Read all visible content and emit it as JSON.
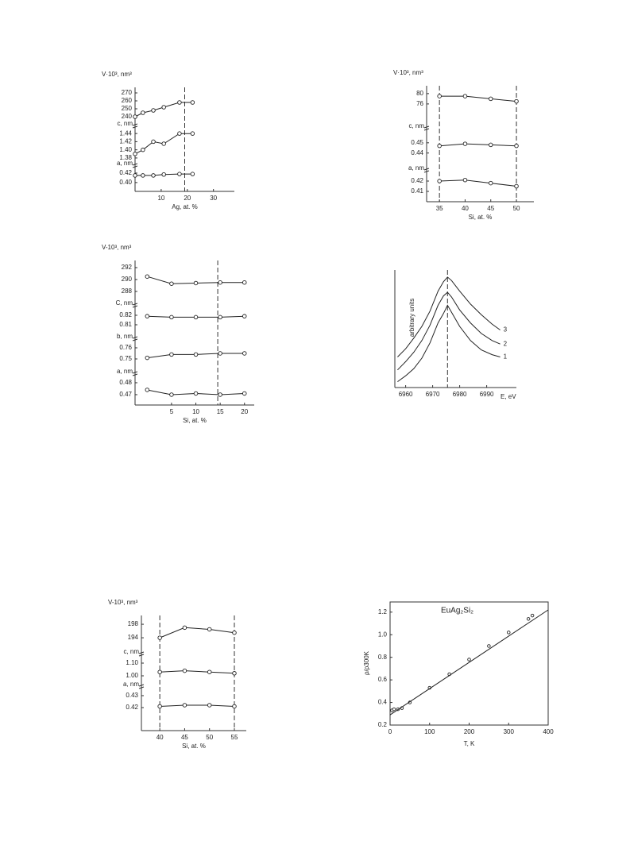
{
  "chart_data": [
    {
      "type": "line",
      "ylabel": "V·10³, nm³",
      "xlabel": "Ag, at. %",
      "xlim": [
        0,
        38
      ],
      "xticks": [
        10,
        20,
        30
      ],
      "vlines": [
        19
      ],
      "panels": [
        {
          "ylim": [
            235,
            275
          ],
          "yticks": [
            270,
            260,
            250,
            240
          ],
          "series": [
            {
              "marker": "o",
              "x": [
                0,
                3,
                7,
                11,
                17,
                22
              ],
              "values": [
                240,
                245,
                248,
                252,
                258,
                258
              ]
            }
          ]
        },
        {
          "label": "c, nm",
          "ylim": [
            1.374,
            1.452
          ],
          "yticks": [
            1.44,
            1.42,
            {
              "value": 1.4,
              "label": "1.40"
            },
            1.38
          ],
          "series": [
            {
              "marker": "o",
              "x": [
                0,
                3,
                7,
                11,
                17,
                22
              ],
              "values": [
                1.39,
                1.4,
                1.42,
                1.415,
                1.44,
                1.44
              ]
            }
          ]
        },
        {
          "label": "a, nm",
          "ylim": [
            0.383,
            0.43
          ],
          "yticks": [
            0.42,
            {
              "value": 0.4,
              "label": "0.40"
            }
          ],
          "series": [
            {
              "marker": "o",
              "x": [
                0,
                3,
                7,
                11,
                17,
                22
              ],
              "values": [
                0.415,
                0.415,
                0.415,
                0.417,
                0.418,
                0.418
              ]
            }
          ]
        }
      ]
    },
    {
      "type": "line",
      "ylabel": "V·10³, nm³",
      "xlabel": "Si, at. %",
      "xlim": [
        32.5,
        53.4
      ],
      "xticks": [
        35,
        40,
        45,
        50
      ],
      "vlines": [
        35,
        50
      ],
      "panels": [
        {
          "ylim": [
            73.2,
            81.8
          ],
          "yticks": [
            80,
            76
          ],
          "series": [
            {
              "marker": "o",
              "x": [
                35,
                40,
                45,
                50
              ],
              "values": [
                79,
                79,
                78,
                77
              ]
            }
          ]
        },
        {
          "label": "c, nm",
          "ylim": [
            0.432,
            0.4615
          ],
          "yticks": [
            0.45,
            0.44
          ],
          "series": [
            {
              "marker": "o",
              "x": [
                35,
                40,
                45,
                50
              ],
              "values": [
                0.447,
                0.449,
                0.448,
                0.447
              ]
            }
          ]
        },
        {
          "label": "a, nm",
          "ylim": [
            0.4,
            0.4277
          ],
          "yticks": [
            0.42,
            0.41
          ],
          "series": [
            {
              "marker": "o",
              "x": [
                35,
                40,
                45,
                50
              ],
              "values": [
                0.42,
                0.421,
                0.418,
                0.415
              ]
            }
          ]
        }
      ]
    },
    {
      "type": "line",
      "ylabel": "V-10³, nm³",
      "xlabel": "Si, at. %",
      "xlim": [
        -2.5,
        22
      ],
      "xticks": [
        5,
        10,
        15,
        20
      ],
      "vlines": [
        14.5
      ],
      "panels": [
        {
          "ylim": [
            287.33,
            292.93
          ],
          "yticks": [
            292,
            290,
            288
          ],
          "series": [
            {
              "marker": "o",
              "x": [
                0,
                5,
                10,
                15,
                20
              ],
              "values": [
                290.5,
                289.3,
                289.4,
                289.5,
                289.5
              ]
            }
          ]
        },
        {
          "label": "C, nm",
          "ylim": [
            0.8058,
            0.8275
          ],
          "yticks": [
            0.82,
            0.81
          ],
          "series": [
            {
              "marker": "o",
              "x": [
                0,
                5,
                10,
                15,
                20
              ],
              "values": [
                0.819,
                0.818,
                0.818,
                0.818,
                0.819
              ]
            }
          ]
        },
        {
          "label": "b, nm",
          "ylim": [
            0.7457,
            0.7657
          ],
          "yticks": [
            0.76,
            0.75
          ],
          "series": [
            {
              "marker": "o",
              "x": [
                0,
                5,
                10,
                15,
                20
              ],
              "values": [
                0.751,
                0.754,
                0.754,
                0.755,
                0.755
              ]
            }
          ]
        },
        {
          "label": "a, nm",
          "ylim": [
            0.4613,
            0.4853
          ],
          "yticks": [
            0.48,
            0.47
          ],
          "series": [
            {
              "marker": "o",
              "x": [
                0,
                5,
                10,
                15,
                20
              ],
              "values": [
                0.474,
                0.47,
                0.471,
                0.47,
                0.471
              ]
            }
          ]
        }
      ]
    },
    {
      "type": "line",
      "ylabel": "arbitrary units",
      "xlabel": "E, eV",
      "xlim": [
        6956,
        7001
      ],
      "xticks": [
        6960,
        6970,
        6980,
        6990
      ],
      "vlines": [
        6975.5
      ],
      "ylim": [
        0,
        1
      ],
      "series": [
        {
          "name": "1",
          "x": [
            6957,
            6960,
            6963,
            6966,
            6969,
            6972,
            6974,
            6975.5,
            6977,
            6980,
            6984,
            6988,
            6992,
            6995
          ],
          "values": [
            0.05,
            0.1,
            0.16,
            0.25,
            0.38,
            0.55,
            0.63,
            0.7,
            0.64,
            0.52,
            0.4,
            0.32,
            0.28,
            0.26
          ]
        },
        {
          "name": "2",
          "x": [
            6957,
            6960,
            6963,
            6966,
            6969,
            6972,
            6974,
            6975.5,
            6977,
            6980,
            6984,
            6988,
            6992,
            6995
          ],
          "values": [
            0.15,
            0.22,
            0.3,
            0.4,
            0.53,
            0.7,
            0.78,
            0.81,
            0.77,
            0.66,
            0.55,
            0.46,
            0.4,
            0.37
          ]
        },
        {
          "name": "3",
          "x": [
            6957,
            6960,
            6963,
            6966,
            6969,
            6972,
            6974,
            6975.5,
            6977,
            6980,
            6984,
            6988,
            6992,
            6995
          ],
          "values": [
            0.26,
            0.33,
            0.42,
            0.52,
            0.65,
            0.82,
            0.9,
            0.94,
            0.91,
            0.82,
            0.71,
            0.62,
            0.54,
            0.49
          ]
        }
      ]
    },
    {
      "type": "line",
      "ylabel": "V-10³, nm³",
      "xlabel": "Si, at. %",
      "xlim": [
        36.3,
        57.4
      ],
      "xticks": [
        40,
        45,
        50,
        55
      ],
      "vlines": [
        40,
        55
      ],
      "panels": [
        {
          "ylim": [
            191.9,
            199.9
          ],
          "yticks": [
            198,
            194
          ],
          "series": [
            {
              "marker": "o",
              "x": [
                40,
                45,
                50,
                55
              ],
              "values": [
                194,
                197,
                196.5,
                195.5
              ]
            }
          ]
        },
        {
          "label": "c, nm",
          "ylim": [
            0.9625,
            1.15
          ],
          "yticks": [
            {
              "value": 1.1,
              "label": "1.10"
            },
            {
              "value": 1,
              "label": "1.00"
            }
          ],
          "series": [
            {
              "marker": "o",
              "x": [
                40,
                45,
                50,
                55
              ],
              "values": [
                1.03,
                1.04,
                1.03,
                1.02
              ]
            }
          ]
        },
        {
          "label": "a, nm",
          "ylim": [
            0.4007,
            0.4353
          ],
          "yticks": [
            0.43,
            0.42
          ],
          "series": [
            {
              "marker": "o",
              "x": [
                40,
                45,
                50,
                55
              ],
              "values": [
                0.421,
                0.422,
                0.422,
                0.421
              ]
            }
          ]
        }
      ]
    },
    {
      "type": "line",
      "title": "EuAg₂Si₂",
      "ylabel": "ρ/ρ300K",
      "xlabel": "T, K",
      "xlim": [
        0,
        400
      ],
      "xticks": [
        0,
        100,
        200,
        300,
        400
      ],
      "ylim": [
        0.2,
        1.29
      ],
      "yticks": [
        0.2,
        0.4,
        0.6,
        0.8,
        {
          "value": 1,
          "label": "1.0"
        },
        1.2
      ],
      "series": [
        {
          "marker": "o",
          "line": false,
          "x": [
            5,
            10,
            20,
            30,
            50,
            100,
            150,
            200,
            250,
            300,
            350,
            360
          ],
          "values": [
            0.33,
            0.34,
            0.34,
            0.35,
            0.4,
            0.53,
            0.65,
            0.78,
            0.9,
            1.02,
            1.14,
            1.17
          ]
        },
        {
          "x": [
            0,
            400
          ],
          "values": [
            0.29,
            1.22
          ]
        }
      ]
    }
  ]
}
